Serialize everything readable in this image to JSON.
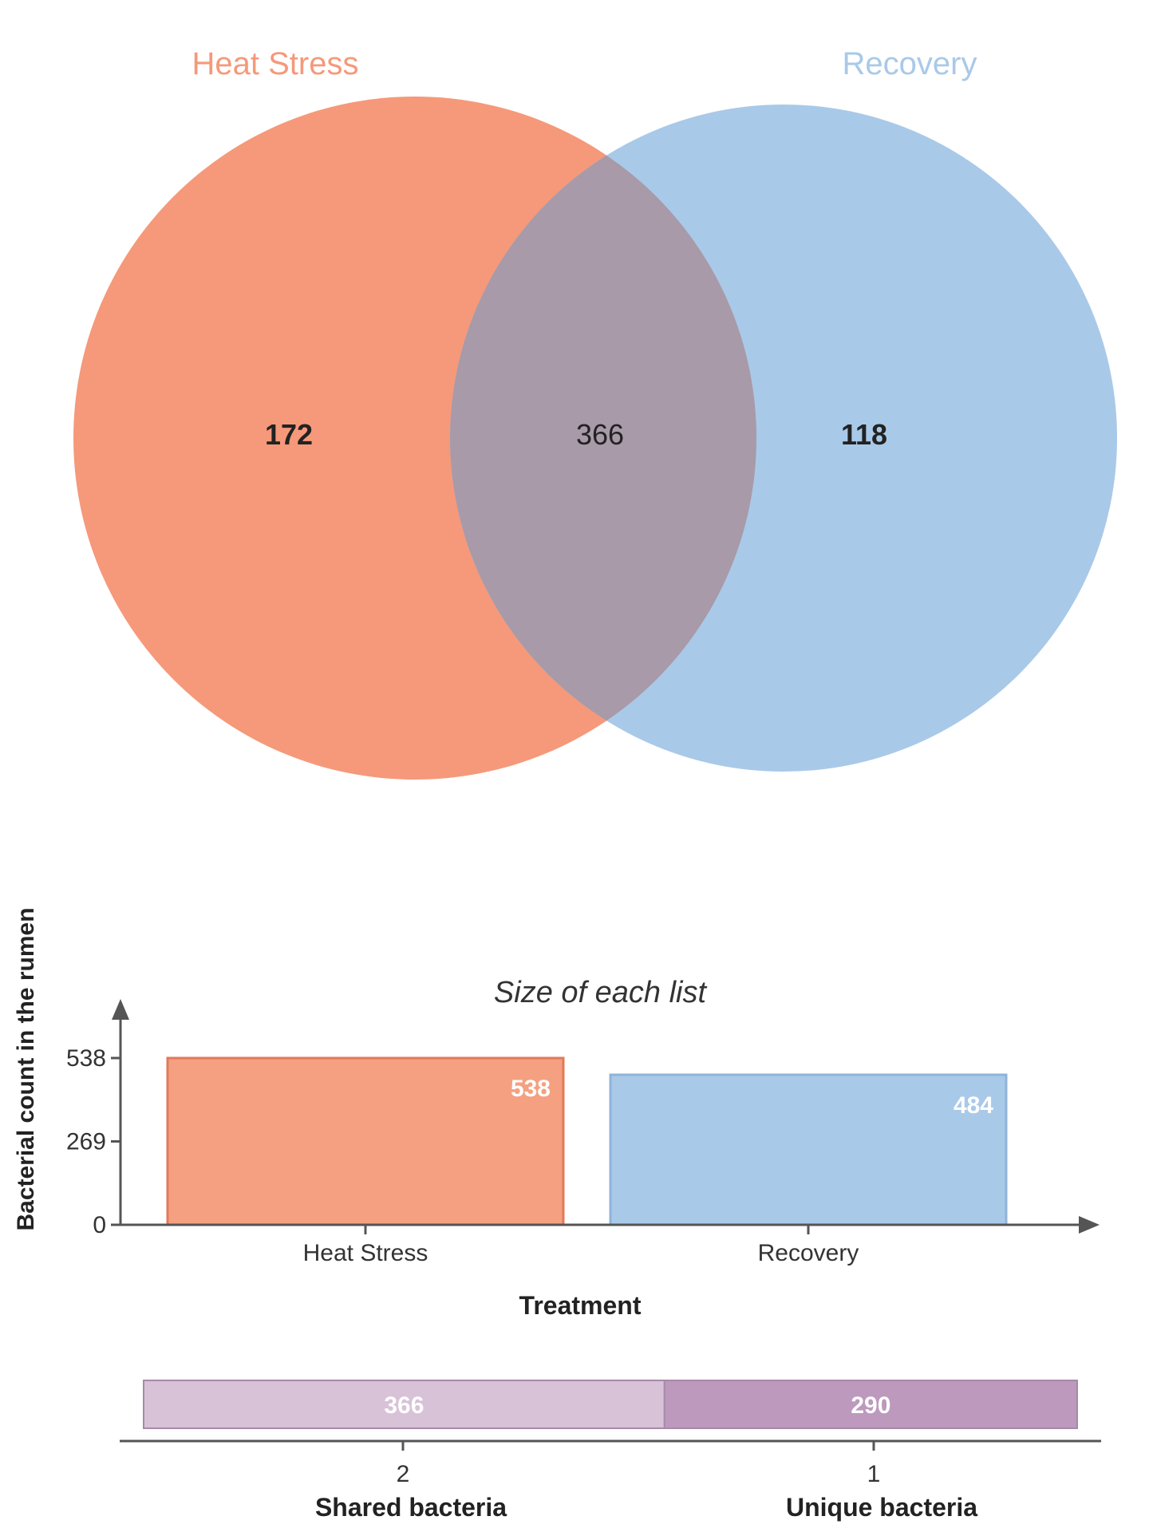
{
  "chart_data": [
    {
      "type": "venn",
      "sets": [
        {
          "name": "Heat Stress",
          "color": "#F5997A"
        },
        {
          "name": "Recovery",
          "color": "#A9C9E8"
        }
      ],
      "regions": {
        "heat_only": "172",
        "shared": "366",
        "recovery_only": "118"
      },
      "overlap_color": "#A89AA8"
    },
    {
      "type": "bar",
      "title": "Size of each list",
      "xlabel": "Treatment",
      "ylabel": "Bacterial count in the rumen",
      "categories": [
        "Heat Stress",
        "Recovery"
      ],
      "values": [
        538,
        484
      ],
      "value_labels": [
        "538",
        "484"
      ],
      "yticks": [
        0,
        269,
        538
      ],
      "ytick_labels": [
        "0",
        "269",
        "538"
      ],
      "ylim": [
        0,
        538
      ],
      "colors": [
        "#F5A080",
        "#A9C9E8"
      ],
      "edge_colors": [
        "#E07A5A",
        "#8FB4D8"
      ],
      "grid": false
    },
    {
      "type": "bar",
      "orientation": "horizontal-stacked",
      "segments": [
        {
          "degree": "2",
          "label": "Shared bacteria",
          "value": 366,
          "value_label": "366",
          "color": "#D8C2D8"
        },
        {
          "degree": "1",
          "label": "Unique bacteria",
          "value": 290,
          "value_label": "290",
          "color": "#BD99BD"
        }
      ]
    }
  ]
}
